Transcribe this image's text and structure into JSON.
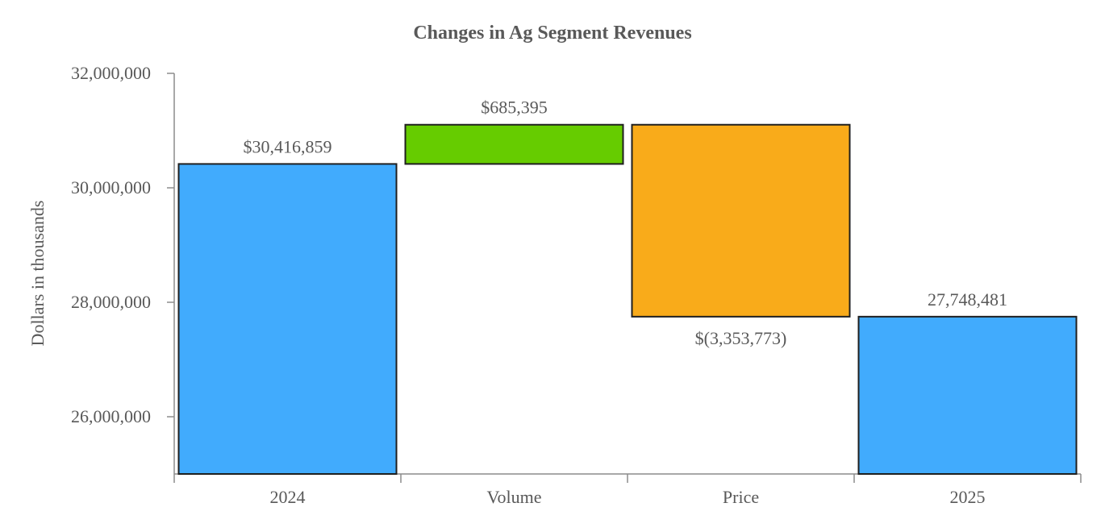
{
  "chart_data": {
    "type": "waterfall",
    "title": "Changes in Ag Segment Revenues",
    "xlabel": "",
    "ylabel": "Dollars in thousands",
    "ylim": [
      25000000,
      32000000
    ],
    "yticks": [
      26000000,
      28000000,
      30000000,
      32000000
    ],
    "ytick_labels": [
      "26,000,000",
      "28,000,000",
      "30,000,000",
      "32,000,000"
    ],
    "categories": [
      "2024",
      "Volume",
      "Price",
      "2025"
    ],
    "bars": [
      {
        "category": "2024",
        "kind": "total",
        "start": 25000000,
        "end": 30416859,
        "label": "$30,416,859",
        "label_pos": "above"
      },
      {
        "category": "Volume",
        "kind": "increase",
        "start": 30416859,
        "end": 31102254,
        "label": "$685,395",
        "label_pos": "above"
      },
      {
        "category": "Price",
        "kind": "decrease",
        "start": 31102254,
        "end": 27748481,
        "label": "$(3,353,773)",
        "label_pos": "below"
      },
      {
        "category": "2025",
        "kind": "total",
        "start": 25000000,
        "end": 27748481,
        "label": "27,748,481",
        "label_pos": "above"
      }
    ],
    "colors": {
      "total": "#41abfd",
      "increase": "#66cc00",
      "decrease": "#f9ab1a"
    },
    "grid": false,
    "legend": "none"
  }
}
